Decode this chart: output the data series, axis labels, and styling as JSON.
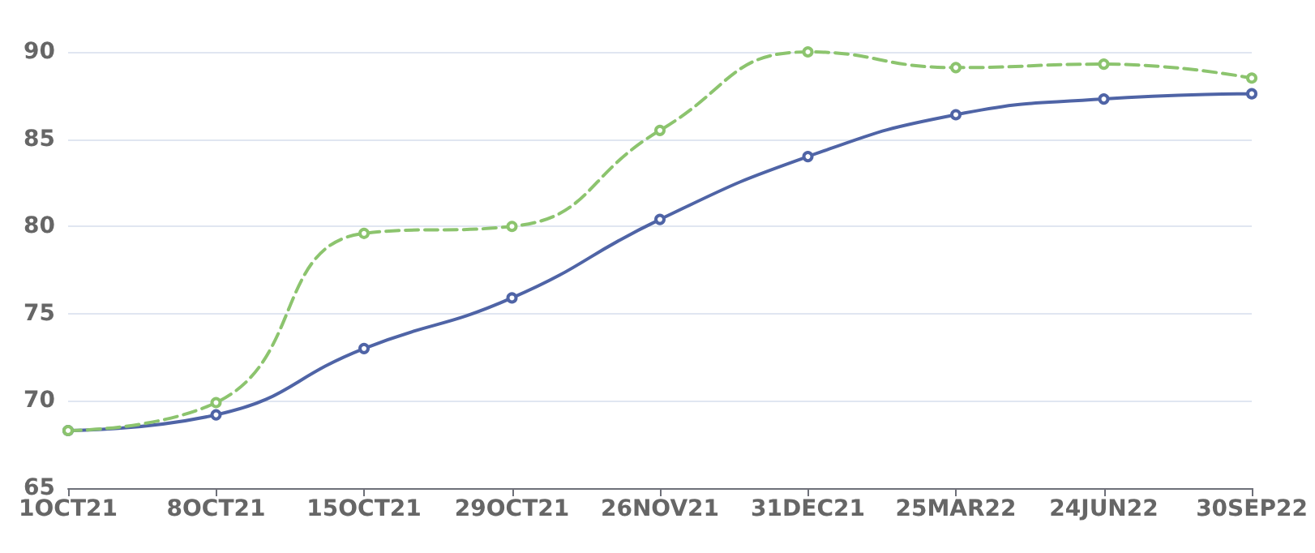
{
  "chart_data": {
    "type": "line",
    "categories": [
      "1OCT21",
      "8OCT21",
      "15OCT21",
      "29OCT21",
      "26NOV21",
      "31DEC21",
      "25MAR22",
      "24JUN22",
      "30SEP22"
    ],
    "series": [
      {
        "color": "#4f64a6",
        "line_style": "solid",
        "values": [
          68.3,
          69.2,
          73.0,
          75.9,
          80.4,
          84.0,
          86.4,
          87.3,
          87.6
        ]
      },
      {
        "color": "#8cc46e",
        "line_style": "dashed",
        "values": [
          68.3,
          69.9,
          79.6,
          80.0,
          85.5,
          90.0,
          89.1,
          89.3,
          88.5
        ]
      }
    ],
    "ylim": [
      65,
      90
    ],
    "yticks": [
      65,
      70,
      75,
      80,
      85,
      90
    ],
    "grid": "y",
    "marker": "circle"
  }
}
